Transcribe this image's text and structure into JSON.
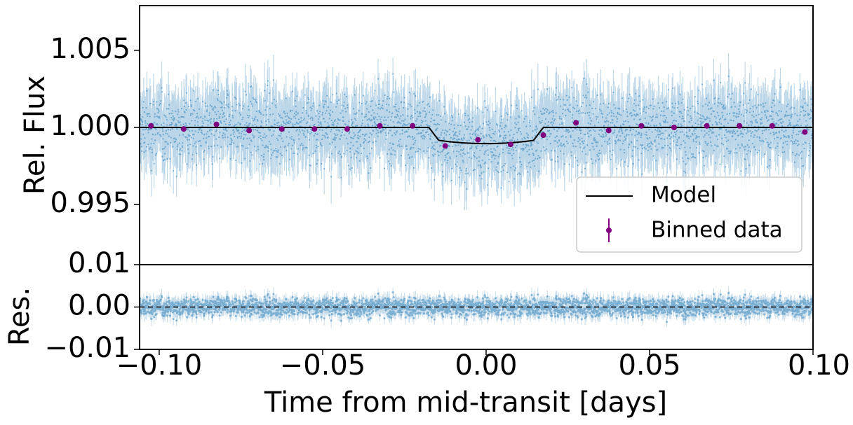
{
  "chart_data": [
    {
      "type": "scatter",
      "panel": "main",
      "ylabel": "Rel. Flux",
      "xlim": [
        -0.106,
        0.1
      ],
      "ylim": [
        0.9911,
        1.0079
      ],
      "yticks": [
        0.995,
        1.0,
        1.005
      ],
      "ytick_labels": [
        "0.995",
        "1.000",
        "1.005"
      ],
      "legend_position": "lower right",
      "legend": [
        {
          "label": "Model",
          "kind": "line",
          "color": "#000000"
        },
        {
          "label": "Binned data",
          "kind": "errorbar-point",
          "color": "#800080"
        }
      ],
      "series": [
        {
          "name": "Model",
          "kind": "line",
          "color": "#000000",
          "transit_model": {
            "baseline": 1.0,
            "depth": 0.00105,
            "ingress_start": -0.0175,
            "ingress_end": -0.0145,
            "egress_start": 0.0145,
            "egress_end": 0.0175
          },
          "x": [
            -0.106,
            -0.0175,
            -0.0145,
            -0.01,
            0.0,
            0.01,
            0.0145,
            0.0175,
            0.1
          ],
          "y": [
            1.0,
            1.0,
            0.99915,
            0.99902,
            0.99895,
            0.99902,
            0.99915,
            1.0,
            1.0
          ]
        },
        {
          "name": "Binned data",
          "kind": "points",
          "color": "#800080",
          "x": [
            -0.1025,
            -0.0925,
            -0.0825,
            -0.0725,
            -0.0625,
            -0.0525,
            -0.0425,
            -0.0325,
            -0.0225,
            -0.0125,
            -0.0025,
            0.0075,
            0.0175,
            0.0275,
            0.0375,
            0.0475,
            0.0575,
            0.0675,
            0.0775,
            0.0875,
            0.0975
          ],
          "y": [
            1.0001,
            0.9999,
            1.0002,
            0.9998,
            0.9999,
            0.9999,
            0.9999,
            1.0001,
            1.0001,
            0.9988,
            0.9992,
            0.9989,
            0.9995,
            1.0003,
            0.9998,
            1.0001,
            1.0,
            1.0001,
            1.0001,
            1.0001,
            0.9997
          ]
        },
        {
          "kind": "raw-errorbars",
          "color": "#1f77b4",
          "point_count": 3000,
          "scatter_sigma": 0.0011,
          "errorbar_halfwidth": 0.0014
        }
      ]
    },
    {
      "type": "scatter",
      "panel": "residuals",
      "ylabel": "Res.",
      "xlabel": "Time from mid-transit [days]",
      "xlim": [
        -0.106,
        0.1
      ],
      "ylim": [
        -0.01,
        0.01
      ],
      "yticks": [
        -0.01,
        0.0,
        0.01
      ],
      "ytick_labels": [
        "−0.01",
        "0.00",
        "0.01"
      ],
      "xticks": [
        -0.1,
        -0.05,
        0.0,
        0.05,
        0.1
      ],
      "xtick_labels": [
        "−0.10",
        "−0.05",
        "0.00",
        "0.05",
        "0.10"
      ],
      "zero_line": {
        "y": 0.0,
        "style": "dashed",
        "color": "#000000"
      },
      "series": [
        {
          "kind": "raw-residuals",
          "color": "#1f77b4",
          "point_count": 3000,
          "scatter_sigma": 0.0011,
          "errorbar_halfwidth": 0.0014
        }
      ]
    }
  ]
}
